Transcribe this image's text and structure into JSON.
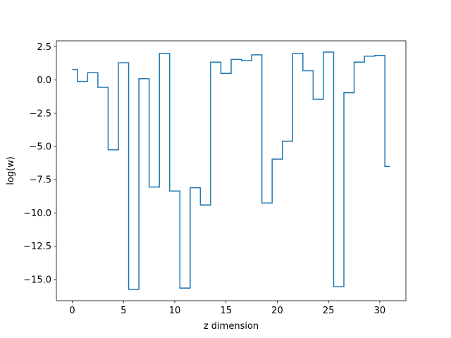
{
  "chart_data": {
    "type": "line",
    "drawstyle": "steps-mid",
    "title": "",
    "xlabel": "z dimension",
    "ylabel": "log(w)",
    "xlim": [
      -1.55,
      32.55
    ],
    "ylim": [
      -16.6,
      2.95
    ],
    "xticks": [
      0,
      5,
      10,
      15,
      20,
      25,
      30
    ],
    "xtick_labels": [
      "0",
      "5",
      "10",
      "15",
      "20",
      "25",
      "30"
    ],
    "yticks": [
      2.5,
      0.0,
      -2.5,
      -5.0,
      -7.5,
      -10.0,
      -12.5,
      -15.0
    ],
    "ytick_labels": [
      "2.5",
      "0.0",
      "−2.5",
      "−5.0",
      "−7.5",
      "−10.0",
      "−12.5",
      "−15.0"
    ],
    "grid": false,
    "legend": null,
    "series": [
      {
        "color": "#1f77b4",
        "x": [
          0,
          1,
          2,
          3,
          4,
          5,
          6,
          7,
          8,
          9,
          10,
          11,
          12,
          13,
          14,
          15,
          16,
          17,
          18,
          19,
          20,
          21,
          22,
          23,
          24,
          25,
          26,
          27,
          28,
          29,
          30,
          31
        ],
        "values": [
          0.8,
          -0.1,
          0.55,
          -0.55,
          -5.25,
          1.3,
          -15.75,
          0.1,
          -8.05,
          2.0,
          -8.35,
          -15.65,
          -8.1,
          -9.4,
          1.35,
          0.5,
          1.55,
          1.45,
          1.9,
          -9.25,
          -5.95,
          -4.6,
          2.0,
          0.7,
          -1.45,
          2.1,
          -15.55,
          -0.95,
          1.35,
          1.8,
          1.85,
          -6.5
        ]
      }
    ]
  }
}
